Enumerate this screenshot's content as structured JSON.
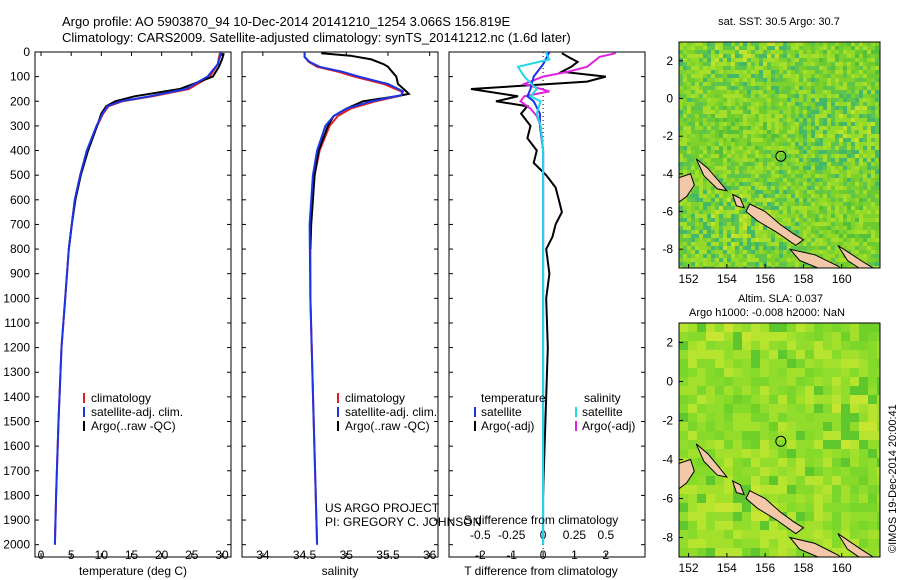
{
  "title": {
    "line1": "Argo profile: AO 5903870_94 10-Dec-2014 20141210_1254 3.066S 156.819E",
    "line2": "Climatology: CARS2009. Satellite-adjusted climatology: synTS_20141212.nc (1.6d later)"
  },
  "colors": {
    "climatology": "#e02020",
    "satellite": "#1a35e8",
    "argo": "#000000",
    "sat_salinity": "#22d8e6",
    "argo_salinity": "#e020e0"
  },
  "depth_axis": {
    "ticks": [
      0,
      100,
      200,
      300,
      400,
      500,
      600,
      700,
      800,
      900,
      1000,
      1100,
      1200,
      1300,
      1400,
      1500,
      1600,
      1700,
      1800,
      1900,
      2000
    ],
    "range": [
      0,
      2050
    ]
  },
  "chart_data": [
    {
      "type": "line",
      "id": "temperature",
      "xlabel": "temperature (deg C)",
      "ylabel": "depth (m)",
      "xlim": [
        -1,
        31.5
      ],
      "ylim": [
        2050,
        0
      ],
      "xticks": [
        0,
        5,
        10,
        15,
        20,
        25,
        30
      ],
      "legend": [
        "climatology",
        "satellite-adj. clim.",
        "Argo(..raw -QC)"
      ],
      "series": [
        {
          "name": "climatology",
          "depth": [
            0,
            50,
            100,
            150,
            180,
            200,
            220,
            250,
            300,
            400,
            500,
            600,
            800,
            1000,
            1200,
            1500,
            1800,
            2000
          ],
          "values": [
            29.7,
            29.3,
            28.0,
            24.5,
            18.5,
            13.5,
            11.2,
            10.3,
            9.3,
            7.6,
            6.5,
            5.6,
            4.6,
            4.0,
            3.4,
            2.9,
            2.5,
            2.3
          ]
        },
        {
          "name": "satellite-adj. clim.",
          "depth": [
            0,
            50,
            100,
            150,
            180,
            200,
            220,
            250,
            300,
            400,
            500,
            600,
            800,
            1000,
            1200,
            1500,
            1800,
            2000
          ],
          "values": [
            29.9,
            29.3,
            27.6,
            24.0,
            18.0,
            13.2,
            11.0,
            10.2,
            9.2,
            7.6,
            6.5,
            5.6,
            4.6,
            4.0,
            3.4,
            2.9,
            2.5,
            2.3
          ]
        },
        {
          "name": "Argo(..raw -QC)",
          "depth": [
            5,
            30,
            60,
            100,
            150,
            180,
            200,
            220,
            250,
            300,
            400,
            500,
            600,
            700,
            800
          ],
          "values": [
            30.3,
            30.0,
            29.5,
            28.5,
            23.0,
            15.5,
            12.3,
            10.8,
            10.0,
            9.3,
            7.8,
            6.6,
            5.7,
            5.1,
            4.6
          ]
        }
      ]
    },
    {
      "type": "line",
      "id": "salinity",
      "xlabel": "salinity",
      "ylabel": "depth (m)",
      "xlim": [
        33.75,
        36.1
      ],
      "ylim": [
        2050,
        0
      ],
      "xticks": [
        34,
        34.5,
        35,
        35.5,
        36
      ],
      "legend": [
        "climatology",
        "satellite-adj. clim.",
        "Argo(..raw -QC)"
      ],
      "series": [
        {
          "name": "climatology",
          "depth": [
            0,
            20,
            40,
            60,
            80,
            100,
            130,
            160,
            175,
            200,
            230,
            260,
            300,
            400,
            500,
            700,
            1000,
            1500,
            2000
          ],
          "values": [
            34.5,
            34.5,
            34.55,
            34.65,
            34.9,
            35.1,
            35.45,
            35.66,
            35.68,
            35.35,
            35.05,
            34.9,
            34.8,
            34.68,
            34.62,
            34.57,
            34.57,
            34.61,
            34.65
          ]
        },
        {
          "name": "satellite-adj. clim.",
          "depth": [
            0,
            20,
            40,
            60,
            80,
            100,
            130,
            160,
            175,
            200,
            230,
            260,
            300,
            400,
            500,
            700,
            1000,
            1500,
            2000
          ],
          "values": [
            34.5,
            34.5,
            34.56,
            34.68,
            34.95,
            35.15,
            35.5,
            35.68,
            35.66,
            35.3,
            35.0,
            34.85,
            34.75,
            34.65,
            34.6,
            34.56,
            34.57,
            34.61,
            34.65
          ]
        },
        {
          "name": "Argo(..raw -QC)",
          "depth": [
            5,
            15,
            30,
            50,
            60,
            80,
            100,
            130,
            160,
            170,
            180,
            200,
            230,
            260,
            300,
            400,
            500,
            700,
            800
          ],
          "values": [
            34.7,
            35.05,
            35.3,
            35.45,
            35.5,
            35.55,
            35.6,
            35.62,
            35.72,
            35.75,
            35.6,
            35.2,
            35.0,
            34.85,
            34.78,
            34.67,
            34.62,
            34.58,
            34.57
          ]
        }
      ]
    },
    {
      "type": "line",
      "id": "difference",
      "title_top": "S difference from climatology",
      "xlabel": "T difference from climatology",
      "xlim": [
        -3,
        3.25
      ],
      "ylim": [
        2050,
        0
      ],
      "xticks_T": [
        -2,
        -1,
        0,
        1,
        2
      ],
      "xticks_S": [
        -0.5,
        -0.25,
        0,
        0.25,
        0.5
      ],
      "legend_T_title": "temperature",
      "legend_S_title": "salinity",
      "legend_T": [
        "satellite",
        "Argo(-adj)"
      ],
      "legend_S": [
        "satellite",
        "Argo(-adj)"
      ],
      "series": [
        {
          "name": "temperature satellite",
          "depth": [
            0,
            50,
            100,
            150,
            180,
            200,
            250,
            300,
            400,
            500,
            600,
            800,
            1000,
            1200,
            1500,
            1800,
            2000
          ],
          "values": [
            0.2,
            0,
            -0.3,
            -0.4,
            -0.5,
            -0.3,
            -0.1,
            -0.1,
            0,
            0,
            0,
            0,
            0,
            0,
            0,
            0,
            0
          ]
        },
        {
          "name": "temperature Argo(-adj)",
          "depth": [
            5,
            20,
            40,
            60,
            80,
            100,
            120,
            150,
            180,
            200,
            220,
            250,
            300,
            350,
            400,
            450,
            500,
            550,
            600,
            650,
            700,
            750,
            800,
            900,
            1000,
            1200,
            1400,
            1600,
            1800
          ],
          "values": [
            0.6,
            0.8,
            1.1,
            0.9,
            0.6,
            2.0,
            1.4,
            -2.3,
            -0.8,
            -1.5,
            -0.5,
            -0.7,
            -0.4,
            -0.5,
            -0.2,
            -0.3,
            0.1,
            0.4,
            0.5,
            0.6,
            0.4,
            0.3,
            0.1,
            0.2,
            0.1,
            0.15,
            0.1,
            0.05,
            0
          ]
        },
        {
          "name": "salinity satellite",
          "depth": [
            0,
            30,
            60,
            100,
            150,
            180,
            200,
            250,
            300,
            400,
            500,
            700,
            1000,
            1500,
            2000
          ],
          "values": [
            0.02,
            0.05,
            -0.2,
            -0.15,
            -0.05,
            -0.1,
            -0.02,
            -0.05,
            -0.02,
            0,
            0,
            0,
            0,
            0,
            0
          ]
        },
        {
          "name": "salinity Argo(-adj)",
          "depth": [
            5,
            20,
            40,
            60,
            80,
            100,
            130,
            160,
            180,
            200,
            230,
            260,
            300,
            400,
            500,
            600,
            700,
            800
          ],
          "values": [
            0.58,
            0.45,
            0.4,
            0.35,
            0.2,
            0,
            -0.15,
            0.05,
            -0.15,
            -0.18,
            -0.1,
            -0.05,
            -0.02,
            0,
            0,
            0,
            0,
            0
          ]
        }
      ]
    },
    {
      "type": "heatmap",
      "id": "sst_map",
      "title": "sat. SST: 30.5 Argo: 30.7",
      "xlim": [
        151.5,
        162
      ],
      "ylim": [
        -9,
        3
      ],
      "xticks": [
        152,
        154,
        156,
        158,
        160
      ],
      "yticks": [
        -8,
        -6,
        -4,
        -2,
        0,
        2
      ],
      "argo_position": {
        "lon": 156.819,
        "lat": -3.066
      }
    },
    {
      "type": "heatmap",
      "id": "sla_map",
      "title_line1": "Altim. SLA: 0.037",
      "title_line2": "Argo h1000: -0.008 h2000: NaN",
      "xlim": [
        151.5,
        162
      ],
      "ylim": [
        -9,
        3
      ],
      "xticks": [
        152,
        154,
        156,
        158,
        160
      ],
      "yticks": [
        -8,
        -6,
        -4,
        -2,
        0,
        2
      ],
      "argo_position": {
        "lon": 156.819,
        "lat": -3.066
      }
    }
  ],
  "annotations": {
    "project": "US ARGO PROJECT",
    "pi": "PI: GREGORY C. JOHNSON",
    "credit": "©IMOS 19-Dec-2014 20:00:41"
  }
}
